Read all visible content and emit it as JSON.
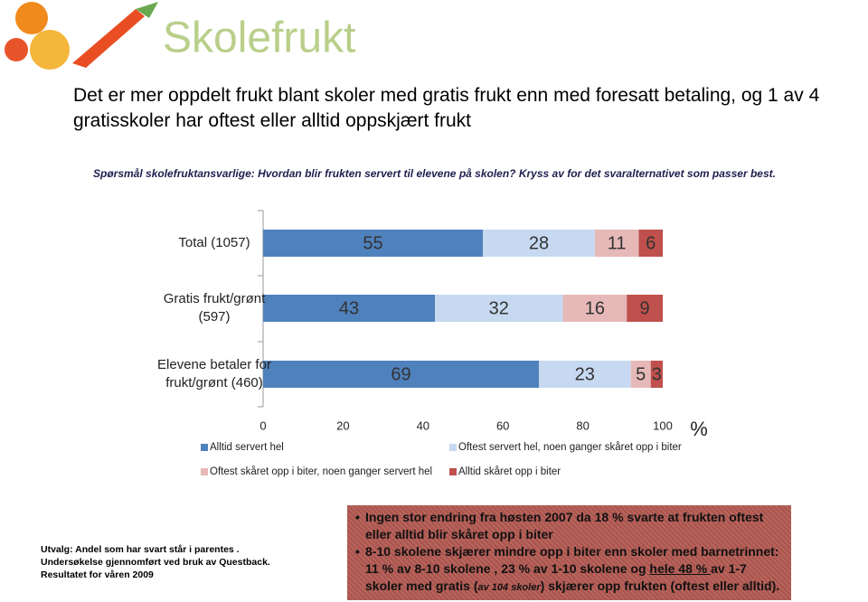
{
  "logo": {
    "text": "Skolefrukt"
  },
  "title": "Det er mer oppdelt frukt blant skoler med gratis frukt enn med foresatt betaling, og 1 av 4 gratisskoler har oftest eller alltid oppskjært frukt",
  "question": "Spørsmål skolefruktansvarlige: Hvordan blir frukten servert til elevene på skolen? Kryss av for det svaralternativet som passer best.",
  "chart_data": {
    "type": "bar",
    "orientation": "horizontal",
    "stacked": true,
    "categories": [
      "Total (1057)",
      "Gratis frukt/grønt (597)",
      "Elevene betaler for frukt/grønt (460)"
    ],
    "series": [
      {
        "name": "Alltid servert hel",
        "color": "#4f81bd",
        "values": [
          55,
          43,
          69
        ]
      },
      {
        "name": "Oftest servert hel, noen ganger skåret opp i biter",
        "color": "#c6d9f1",
        "values": [
          28,
          32,
          23
        ]
      },
      {
        "name": "Oftest skåret opp i biter, noen ganger servert hel",
        "color": "#e6b9b8",
        "values": [
          11,
          16,
          5
        ]
      },
      {
        "name": "Alltid skåret opp i biter",
        "color": "#c0504d",
        "values": [
          6,
          9,
          3
        ]
      }
    ],
    "xlim": [
      0,
      100
    ],
    "xticks": [
      0,
      20,
      40,
      60,
      80,
      100
    ],
    "x_label": "%"
  },
  "footnote": [
    "Utvalg: Andel som har svart står i parentes .",
    "Undersøkelse gjennomført ved bruk av Questback.",
    "Resultatet for våren 2009"
  ],
  "notes": [
    [
      "Ingen stor endring fra høsten 2007 da 18 % svarte at frukten oftest eller alltid blir skåret opp i biter"
    ],
    [
      "8-10 skolene skjærer mindre opp i biter enn skoler med barnetrinnet: 11 % av 8-10 skolene , 23 % av 1-10 skolene og ",
      "hele 48 % ",
      "av 1-7 skoler med gratis (",
      "av 104 skoler",
      ") skjærer opp frukten (oftest eller alltid)."
    ]
  ]
}
